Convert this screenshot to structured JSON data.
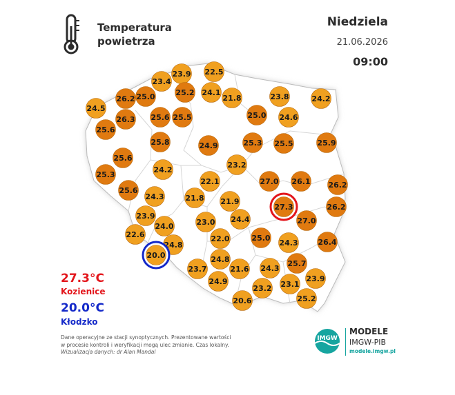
{
  "header": {
    "title_line1": "Temperatura",
    "title_line2": "powietrza",
    "day": "Niedziela",
    "date": "21.06.2026",
    "time": "09:00",
    "icon": "thermometer-icon"
  },
  "extremes": {
    "max_value": "27.3°C",
    "max_station": "Kozienice",
    "min_value": "20.0°C",
    "min_station": "Kłodzko",
    "max_color": "#e3161c",
    "min_color": "#1429c9"
  },
  "note": {
    "line1": "Dane operacyjne ze stacji synoptycznych. Prezentowane wartości",
    "line2": "w procesie kontroli i weryfikacji mogą ulec zmianie. Czas lokalny.",
    "credit": "Wizualizacja danych: dr Alan Mandal"
  },
  "brand": {
    "name_line1": "MODELE",
    "name_line2": "IMGW-PIB",
    "url": "modele.imgw.pl",
    "logo_text": "IMGW",
    "accent": "#16a5a0"
  },
  "colors": {
    "hot": "#e07a10",
    "warm": "#f0a020",
    "land": "#ffffff",
    "border": "#cfcfcf"
  },
  "stations": [
    {
      "v": "23.9",
      "t": "warm"
    },
    {
      "v": "22.5",
      "t": "warm"
    },
    {
      "v": "23.4",
      "t": "warm"
    },
    {
      "v": "25.2",
      "t": "hot"
    },
    {
      "v": "24.1",
      "t": "warm"
    },
    {
      "v": "26.2",
      "t": "hot"
    },
    {
      "v": "25.0",
      "t": "hot"
    },
    {
      "v": "21.8",
      "t": "warm"
    },
    {
      "v": "23.8",
      "t": "warm"
    },
    {
      "v": "24.2",
      "t": "warm"
    },
    {
      "v": "24.5",
      "t": "warm"
    },
    {
      "v": "26.3",
      "t": "hot"
    },
    {
      "v": "25.6",
      "t": "hot"
    },
    {
      "v": "25.5",
      "t": "hot"
    },
    {
      "v": "25.0",
      "t": "hot"
    },
    {
      "v": "24.6",
      "t": "warm"
    },
    {
      "v": "25.6",
      "t": "hot"
    },
    {
      "v": "25.8",
      "t": "hot"
    },
    {
      "v": "24.9",
      "t": "hot"
    },
    {
      "v": "25.3",
      "t": "hot"
    },
    {
      "v": "25.5",
      "t": "hot"
    },
    {
      "v": "25.9",
      "t": "hot"
    },
    {
      "v": "25.6",
      "t": "hot"
    },
    {
      "v": "23.2",
      "t": "warm"
    },
    {
      "v": "25.3",
      "t": "hot"
    },
    {
      "v": "24.2",
      "t": "warm"
    },
    {
      "v": "27.0",
      "t": "hot"
    },
    {
      "v": "26.1",
      "t": "hot"
    },
    {
      "v": "22.1",
      "t": "warm"
    },
    {
      "v": "26.2",
      "t": "hot"
    },
    {
      "v": "25.6",
      "t": "hot"
    },
    {
      "v": "24.3",
      "t": "warm"
    },
    {
      "v": "21.8",
      "t": "warm"
    },
    {
      "v": "21.9",
      "t": "warm"
    },
    {
      "v": "27.3",
      "t": "hot",
      "mark": "max"
    },
    {
      "v": "26.2",
      "t": "hot"
    },
    {
      "v": "23.9",
      "t": "warm"
    },
    {
      "v": "23.0",
      "t": "warm"
    },
    {
      "v": "24.4",
      "t": "warm"
    },
    {
      "v": "27.0",
      "t": "hot"
    },
    {
      "v": "24.0",
      "t": "warm"
    },
    {
      "v": "22.6",
      "t": "warm"
    },
    {
      "v": "22.0",
      "t": "warm"
    },
    {
      "v": "25.0",
      "t": "hot"
    },
    {
      "v": "24.3",
      "t": "warm"
    },
    {
      "v": "26.4",
      "t": "hot"
    },
    {
      "v": "24.8",
      "t": "warm"
    },
    {
      "v": "20.0",
      "t": "warm",
      "mark": "min"
    },
    {
      "v": "24.8",
      "t": "warm"
    },
    {
      "v": "25.7",
      "t": "hot"
    },
    {
      "v": "23.7",
      "t": "warm"
    },
    {
      "v": "21.6",
      "t": "warm"
    },
    {
      "v": "24.3",
      "t": "warm"
    },
    {
      "v": "24.9",
      "t": "warm"
    },
    {
      "v": "23.2",
      "t": "warm"
    },
    {
      "v": "23.1",
      "t": "warm"
    },
    {
      "v": "23.9",
      "t": "warm"
    },
    {
      "v": "20.6",
      "t": "warm"
    },
    {
      "v": "25.2",
      "t": "warm"
    }
  ]
}
